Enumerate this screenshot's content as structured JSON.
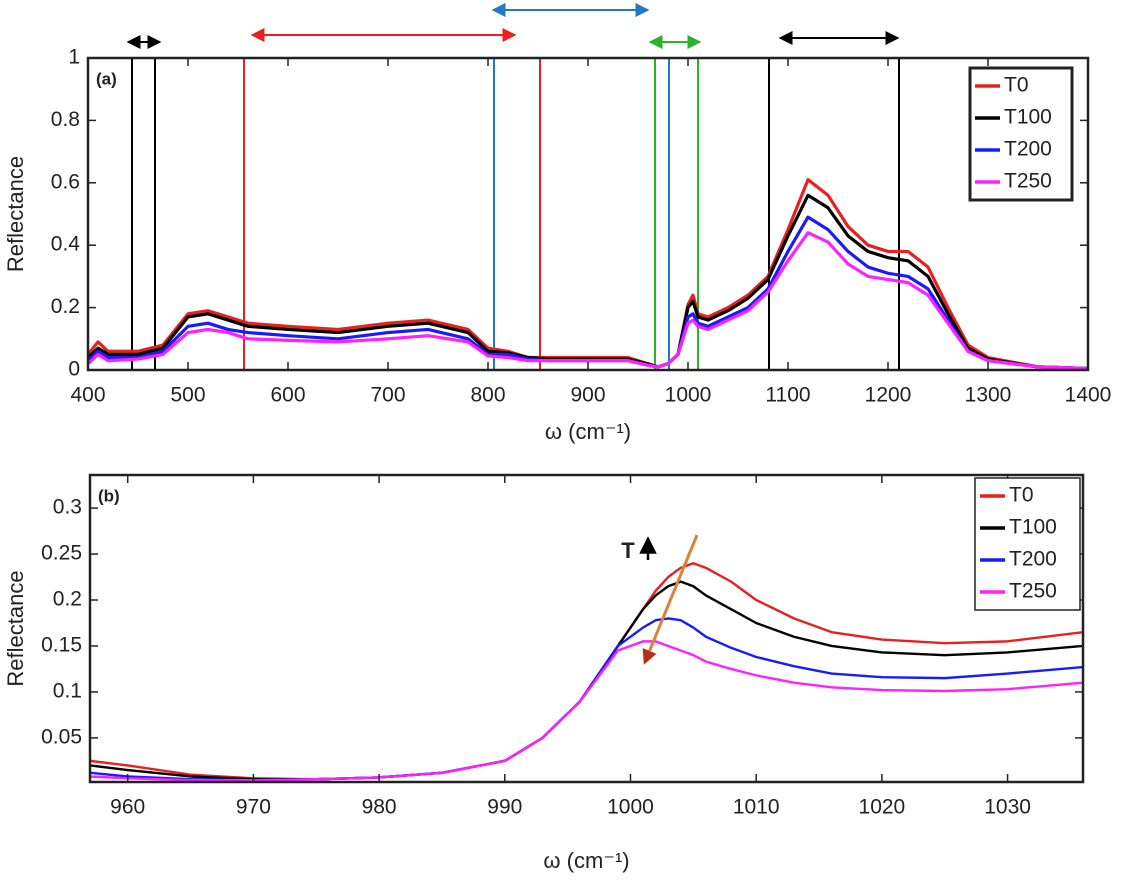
{
  "chart_data": [
    {
      "type": "line",
      "panel_label": "(a)",
      "xlabel": "ω (cm⁻¹)",
      "ylabel": "Reflectance",
      "xlim": [
        400,
        1400
      ],
      "ylim": [
        0,
        1
      ],
      "xticks": [
        400,
        500,
        600,
        700,
        800,
        900,
        1000,
        1100,
        1200,
        1300,
        1400
      ],
      "yticks": [
        0,
        0.2,
        0.4,
        0.6,
        0.8,
        1
      ],
      "legend": "upper right",
      "x": [
        400,
        410,
        420,
        450,
        475,
        500,
        520,
        540,
        560,
        600,
        650,
        700,
        740,
        780,
        800,
        820,
        840,
        860,
        900,
        940,
        960,
        970,
        980,
        990,
        1000,
        1005,
        1010,
        1020,
        1040,
        1060,
        1080,
        1100,
        1120,
        1140,
        1160,
        1180,
        1200,
        1220,
        1240,
        1260,
        1280,
        1300,
        1350,
        1400
      ],
      "series": [
        {
          "name": "T0",
          "color": "#e8201f",
          "values": [
            0.05,
            0.09,
            0.06,
            0.06,
            0.08,
            0.18,
            0.19,
            0.17,
            0.15,
            0.14,
            0.13,
            0.15,
            0.16,
            0.13,
            0.07,
            0.06,
            0.04,
            0.04,
            0.04,
            0.04,
            0.02,
            0.01,
            0.02,
            0.05,
            0.21,
            0.24,
            0.18,
            0.17,
            0.2,
            0.24,
            0.3,
            0.45,
            0.61,
            0.56,
            0.46,
            0.4,
            0.38,
            0.38,
            0.33,
            0.2,
            0.08,
            0.04,
            0.01,
            0.005
          ]
        },
        {
          "name": "T100",
          "color": "#000000",
          "values": [
            0.04,
            0.07,
            0.05,
            0.05,
            0.07,
            0.17,
            0.18,
            0.16,
            0.14,
            0.13,
            0.12,
            0.14,
            0.15,
            0.12,
            0.06,
            0.055,
            0.04,
            0.035,
            0.035,
            0.035,
            0.02,
            0.01,
            0.02,
            0.05,
            0.2,
            0.22,
            0.17,
            0.16,
            0.19,
            0.23,
            0.29,
            0.43,
            0.56,
            0.52,
            0.43,
            0.38,
            0.36,
            0.35,
            0.3,
            0.18,
            0.07,
            0.035,
            0.01,
            0.005
          ]
        },
        {
          "name": "T200",
          "color": "#1a1aff",
          "values": [
            0.03,
            0.06,
            0.04,
            0.04,
            0.06,
            0.14,
            0.15,
            0.13,
            0.12,
            0.11,
            0.1,
            0.12,
            0.13,
            0.1,
            0.05,
            0.05,
            0.035,
            0.03,
            0.03,
            0.03,
            0.015,
            0.01,
            0.02,
            0.05,
            0.17,
            0.18,
            0.15,
            0.14,
            0.17,
            0.2,
            0.26,
            0.38,
            0.49,
            0.45,
            0.38,
            0.33,
            0.31,
            0.3,
            0.26,
            0.16,
            0.06,
            0.03,
            0.01,
            0.005
          ]
        },
        {
          "name": "T250",
          "color": "#ff20ff",
          "values": [
            0.02,
            0.05,
            0.03,
            0.035,
            0.05,
            0.12,
            0.13,
            0.12,
            0.1,
            0.095,
            0.09,
            0.1,
            0.11,
            0.09,
            0.045,
            0.04,
            0.03,
            0.03,
            0.03,
            0.03,
            0.015,
            0.01,
            0.02,
            0.05,
            0.15,
            0.16,
            0.14,
            0.13,
            0.16,
            0.19,
            0.25,
            0.35,
            0.44,
            0.41,
            0.34,
            0.3,
            0.29,
            0.28,
            0.24,
            0.15,
            0.06,
            0.03,
            0.01,
            0.005
          ]
        }
      ],
      "vlines": [
        {
          "x": 444,
          "color": "#000000"
        },
        {
          "x": 467,
          "color": "#000000"
        },
        {
          "x": 556,
          "color": "#e8201f"
        },
        {
          "x": 852,
          "color": "#e8201f"
        },
        {
          "x": 806,
          "color": "#1f78c8"
        },
        {
          "x": 981,
          "color": "#1f78c8"
        },
        {
          "x": 967,
          "color": "#2ab32a"
        },
        {
          "x": 1010,
          "color": "#2ab32a"
        },
        {
          "x": 1081,
          "color": "#000000"
        },
        {
          "x": 1211,
          "color": "#000000"
        }
      ],
      "arrows": [
        {
          "x": [
            440,
            472
          ],
          "color": "#000000"
        },
        {
          "x": [
            564,
            827
          ],
          "color": "#e8201f"
        },
        {
          "x": [
            805,
            960
          ],
          "color": "#1f78c8"
        },
        {
          "x": [
            962,
            1012
          ],
          "color": "#2ab32a"
        },
        {
          "x": [
            1092,
            1210
          ],
          "color": "#000000"
        }
      ]
    },
    {
      "type": "line",
      "panel_label": "(b)",
      "xlabel": "ω (cm⁻¹)",
      "ylabel": "Reflectance",
      "annotation": "T",
      "xlim": [
        957,
        1036
      ],
      "ylim": [
        0.002,
        0.336
      ],
      "xticks": [
        960,
        970,
        980,
        990,
        1000,
        1010,
        1020,
        1030
      ],
      "yticks": [
        0.05,
        0.1,
        0.15,
        0.2,
        0.25,
        0.3
      ],
      "legend": "upper right",
      "x": [
        957,
        960,
        965,
        970,
        975,
        980,
        985,
        990,
        993,
        996,
        999,
        1001,
        1002,
        1003,
        1004,
        1005,
        1006,
        1008,
        1010,
        1013,
        1016,
        1020,
        1025,
        1030,
        1036
      ],
      "series": [
        {
          "name": "T0",
          "color": "#e8201f",
          "values": [
            0.025,
            0.02,
            0.01,
            0.006,
            0.005,
            0.007,
            0.012,
            0.025,
            0.05,
            0.09,
            0.15,
            0.19,
            0.21,
            0.225,
            0.235,
            0.24,
            0.235,
            0.22,
            0.2,
            0.18,
            0.165,
            0.157,
            0.153,
            0.155,
            0.165
          ]
        },
        {
          "name": "T100",
          "color": "#000000",
          "values": [
            0.02,
            0.015,
            0.008,
            0.005,
            0.005,
            0.007,
            0.012,
            0.025,
            0.05,
            0.09,
            0.15,
            0.19,
            0.205,
            0.215,
            0.22,
            0.215,
            0.205,
            0.19,
            0.175,
            0.16,
            0.15,
            0.143,
            0.14,
            0.143,
            0.15
          ]
        },
        {
          "name": "T200",
          "color": "#1a1aff",
          "values": [
            0.012,
            0.008,
            0.005,
            0.004,
            0.005,
            0.007,
            0.012,
            0.025,
            0.05,
            0.09,
            0.15,
            0.17,
            0.178,
            0.18,
            0.178,
            0.17,
            0.16,
            0.148,
            0.138,
            0.128,
            0.12,
            0.116,
            0.115,
            0.12,
            0.127
          ]
        },
        {
          "name": "T250",
          "color": "#ff20ff",
          "values": [
            0.008,
            0.006,
            0.004,
            0.004,
            0.005,
            0.007,
            0.012,
            0.025,
            0.05,
            0.09,
            0.145,
            0.155,
            0.155,
            0.15,
            0.145,
            0.14,
            0.133,
            0.125,
            0.118,
            0.11,
            0.105,
            0.102,
            0.101,
            0.103,
            0.11
          ]
        }
      ]
    }
  ]
}
